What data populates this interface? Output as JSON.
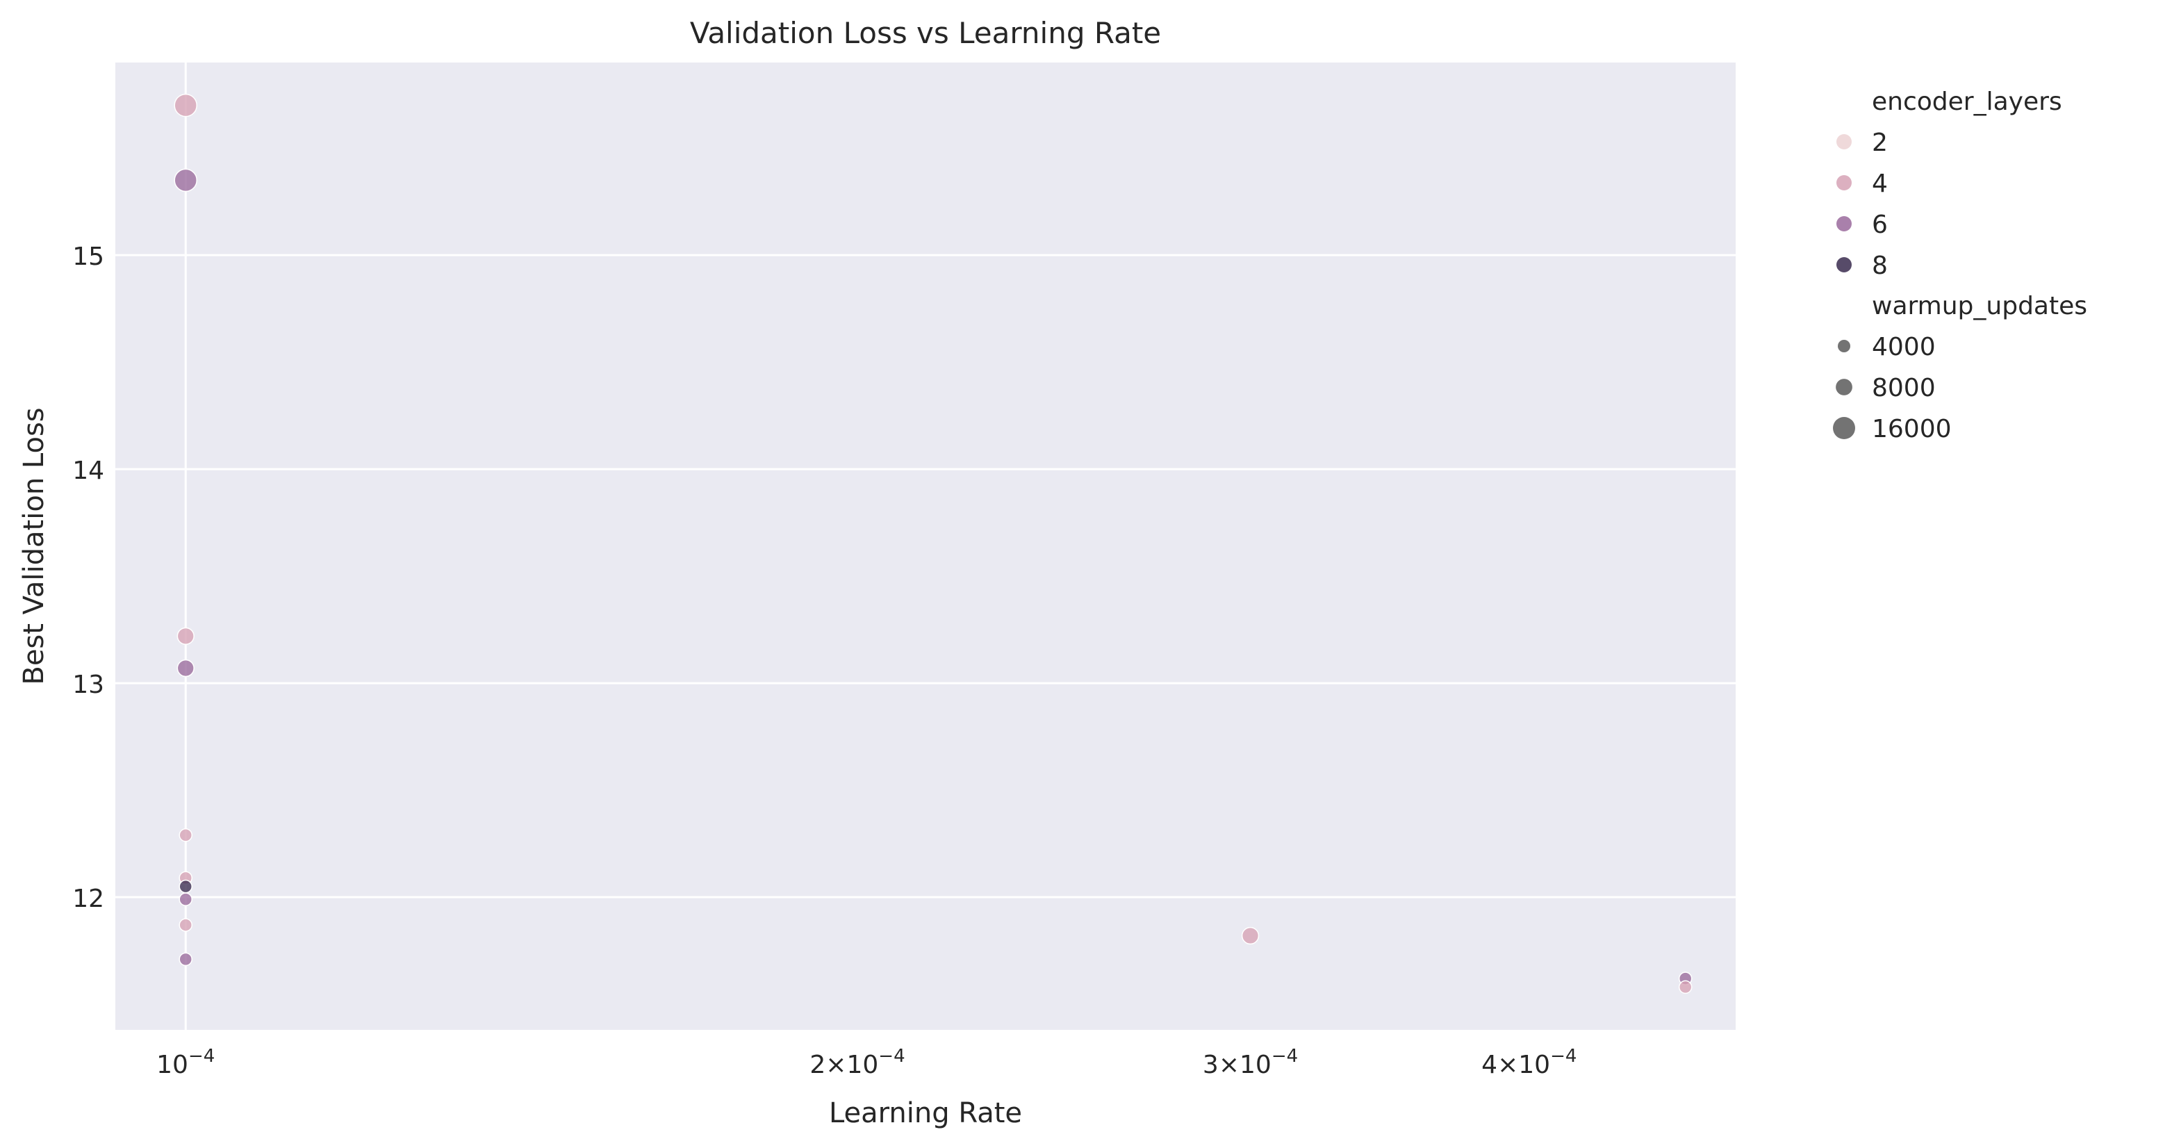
{
  "chart_data": {
    "type": "scatter",
    "title": "Validation Loss vs Learning Rate",
    "xlabel": "Learning Rate",
    "ylabel": "Best Validation Loss",
    "x_scale": "log",
    "xlim": [
      9.3e-05,
      0.000495
    ],
    "ylim": [
      11.38,
      15.9
    ],
    "grid": true,
    "x_ticks": [
      {
        "value": 0.0001,
        "base": "10",
        "exp": "−4",
        "mantissa": ""
      },
      {
        "value": 0.0002,
        "base": "10",
        "exp": "−4",
        "mantissa": "2"
      },
      {
        "value": 0.0003,
        "base": "10",
        "exp": "−4",
        "mantissa": "3"
      },
      {
        "value": 0.0004,
        "base": "10",
        "exp": "−4",
        "mantissa": "4"
      }
    ],
    "y_ticks": [
      12,
      13,
      14,
      15
    ],
    "hue": {
      "title": "encoder_layers",
      "entries": [
        {
          "label": "2",
          "value": 2,
          "color": "#ecd2d4"
        },
        {
          "label": "4",
          "value": 4,
          "color": "#d6a2b5"
        },
        {
          "label": "6",
          "value": 6,
          "color": "#9a6a9c"
        },
        {
          "label": "8",
          "value": 8,
          "color": "#3a2b4f"
        }
      ]
    },
    "size": {
      "title": "warmup_updates",
      "entries": [
        {
          "label": "4000",
          "value": 4000
        },
        {
          "label": "8000",
          "value": 8000
        },
        {
          "label": "16000",
          "value": 16000
        }
      ]
    },
    "legend_position": "outside right",
    "points": [
      {
        "x": 0.0001,
        "y": 15.7,
        "encoder_layers": 4,
        "warmup_updates": 16000
      },
      {
        "x": 0.0001,
        "y": 15.35,
        "encoder_layers": 6,
        "warmup_updates": 16000
      },
      {
        "x": 0.0001,
        "y": 13.22,
        "encoder_layers": 4,
        "warmup_updates": 8000
      },
      {
        "x": 0.0001,
        "y": 13.07,
        "encoder_layers": 6,
        "warmup_updates": 8000
      },
      {
        "x": 0.0001,
        "y": 12.29,
        "encoder_layers": 4,
        "warmup_updates": 4000
      },
      {
        "x": 0.0001,
        "y": 12.09,
        "encoder_layers": 4,
        "warmup_updates": 4000
      },
      {
        "x": 0.0001,
        "y": 12.05,
        "encoder_layers": 8,
        "warmup_updates": 4000
      },
      {
        "x": 0.0001,
        "y": 11.99,
        "encoder_layers": 6,
        "warmup_updates": 4000
      },
      {
        "x": 0.0001,
        "y": 11.87,
        "encoder_layers": 4,
        "warmup_updates": 4000
      },
      {
        "x": 0.0001,
        "y": 11.71,
        "encoder_layers": 6,
        "warmup_updates": 4000
      },
      {
        "x": 0.0003,
        "y": 11.82,
        "encoder_layers": 4,
        "warmup_updates": 8000
      },
      {
        "x": 0.00047,
        "y": 11.62,
        "encoder_layers": 6,
        "warmup_updates": 4000
      },
      {
        "x": 0.00047,
        "y": 11.58,
        "encoder_layers": 4,
        "warmup_updates": 4000
      }
    ]
  }
}
